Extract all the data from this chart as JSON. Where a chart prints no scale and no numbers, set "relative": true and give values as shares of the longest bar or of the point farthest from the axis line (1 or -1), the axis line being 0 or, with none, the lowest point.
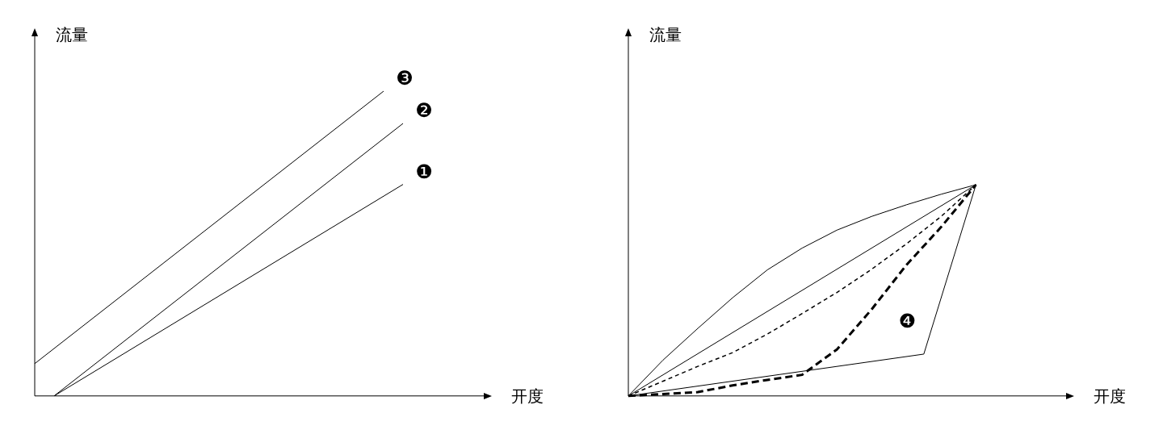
{
  "chart_data": [
    {
      "type": "line",
      "relative": true,
      "xlabel": "开度",
      "ylabel": "流量",
      "marker": "none",
      "legend": false,
      "categories": [
        null,
        null,
        null,
        null,
        null,
        null,
        null,
        null,
        null,
        null,
        null,
        null,
        null,
        null,
        null,
        null,
        null,
        null,
        null,
        null,
        null,
        null,
        null,
        null
      ],
      "series": [
        {
          "name": "❶",
          "color": "#000000",
          "line_style": "solid",
          "values": [
            null,
            0,
            null,
            null,
            null,
            null,
            null,
            null,
            null,
            null,
            null,
            null,
            null,
            null,
            null,
            null,
            null,
            null,
            null,
            0.694,
            null,
            null,
            null,
            null
          ]
        },
        {
          "name": "❷",
          "color": "#000000",
          "line_style": "solid",
          "values": [
            null,
            0,
            null,
            null,
            null,
            null,
            null,
            null,
            null,
            null,
            null,
            null,
            null,
            null,
            null,
            null,
            null,
            null,
            null,
            0.894,
            null,
            null,
            null,
            null
          ]
        },
        {
          "name": "❸",
          "color": "#000000",
          "line_style": "solid",
          "values": [
            0.106,
            null,
            null,
            null,
            null,
            null,
            null,
            null,
            null,
            null,
            null,
            null,
            null,
            null,
            null,
            null,
            null,
            null,
            1,
            null,
            null,
            null,
            null,
            null
          ]
        }
      ]
    },
    {
      "type": "line",
      "relative": true,
      "xlabel": "开度",
      "ylabel": "流量",
      "marker": "none",
      "legend": false,
      "categories": [
        null,
        null,
        null,
        null,
        null,
        null,
        null,
        null,
        null,
        null,
        null,
        null,
        null,
        null,
        null,
        null,
        null,
        null,
        null,
        null,
        null,
        null,
        null,
        null,
        null,
        null
      ],
      "series": [
        {
          "color": "#000000",
          "line_style": "solid",
          "values": [
            0,
            null,
            0.17,
            null,
            0.32,
            null,
            0.465,
            null,
            0.597,
            null,
            0.7,
            null,
            0.785,
            null,
            0.85,
            null,
            0.905,
            null,
            0.955,
            null,
            1,
            null,
            null,
            null,
            null,
            null
          ]
        },
        {
          "color": "#000000",
          "line_style": "solid",
          "values": [
            0,
            null,
            null,
            null,
            null,
            null,
            null,
            null,
            null,
            null,
            null,
            null,
            null,
            null,
            null,
            null,
            null,
            null,
            null,
            null,
            1,
            null,
            null,
            null,
            null,
            null
          ]
        },
        {
          "color": "#000000",
          "line_style": "dotted",
          "values": [
            0,
            null,
            0.07,
            null,
            0.14,
            null,
            0.205,
            null,
            0.293,
            null,
            0.39,
            null,
            0.49,
            null,
            0.6,
            null,
            0.72,
            null,
            0.85,
            null,
            1,
            null,
            null,
            null,
            null,
            null
          ]
        },
        {
          "name": "❹",
          "color": "#000000",
          "line_style": "dashed",
          "values": [
            0,
            null,
            0.009,
            null,
            0.018,
            null,
            0.05,
            null,
            0.076,
            null,
            0.1,
            null,
            0.22,
            null,
            0.41,
            null,
            0.62,
            null,
            0.8,
            null,
            1,
            null,
            null,
            null,
            null,
            null
          ]
        },
        {
          "color": "#000000",
          "line_style": "solid",
          "values": [
            0,
            null,
            null,
            null,
            null,
            null,
            null,
            null,
            null,
            null,
            null,
            null,
            null,
            null,
            null,
            null,
            null,
            0.198,
            null,
            null,
            1,
            null,
            null,
            null,
            null,
            null
          ]
        }
      ]
    }
  ]
}
